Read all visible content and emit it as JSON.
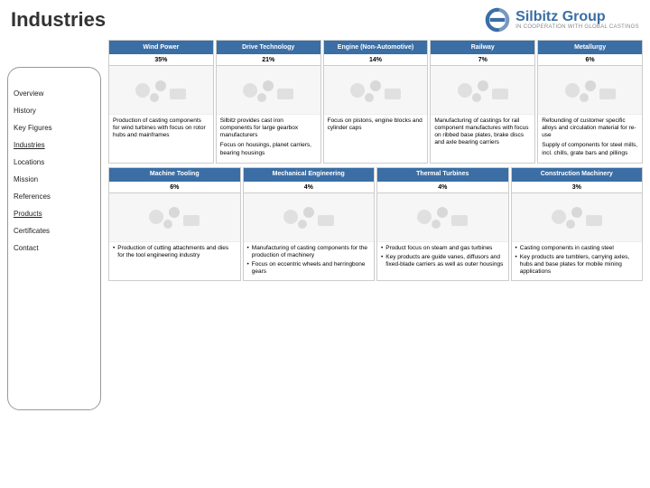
{
  "title": "Industries",
  "logo": {
    "name": "Silbitz Group",
    "sub": "IN COOPERATION WITH GLOBAL CASTINGS"
  },
  "sidebar": {
    "items": [
      {
        "label": "Overview"
      },
      {
        "label": "History"
      },
      {
        "label": "Key Figures"
      },
      {
        "label": "Industries",
        "active": true
      },
      {
        "label": "Locations"
      },
      {
        "label": "Mission"
      },
      {
        "label": "References"
      },
      {
        "label": "Products",
        "active": true
      },
      {
        "label": "Certificates"
      },
      {
        "label": "Contact"
      }
    ]
  },
  "row1": [
    {
      "title": "Wind Power",
      "pct": "35%",
      "desc": [
        "Production of casting components for wind turbines with focus on rotor hubs and mainframes"
      ]
    },
    {
      "title": "Drive Technology",
      "pct": "21%",
      "desc": [
        "Silbitz provides cast iron components for large gearbox manufacturers",
        "Focus on housings, planet carriers, bearing housings"
      ]
    },
    {
      "title": "Engine (Non-Automotive)",
      "pct": "14%",
      "desc": [
        "Focus on pistons, engine blocks and cylinder caps"
      ]
    },
    {
      "title": "Railway",
      "pct": "7%",
      "desc": [
        "Manufacturing of castings for rail component manufactures with focus on ribbed base plates, brake discs and axle bearing carriers"
      ]
    },
    {
      "title": "Metallurgy",
      "pct": "6%",
      "desc": [
        "Refounding of customer specific alloys and circulation material for re-use",
        "Supply of components for steel mills, incl. chills, grate bars and pillings"
      ]
    }
  ],
  "row2": [
    {
      "title": "Machine Tooling",
      "pct": "6%",
      "bullets": [
        "Production of cutting attachments and dies for the tool engineering industry"
      ]
    },
    {
      "title": "Mechanical Engineering",
      "pct": "4%",
      "bullets": [
        "Manufacturing of casting components for the production of machinery",
        "Focus on eccentric wheels and herringbone gears"
      ]
    },
    {
      "title": "Thermal Turbines",
      "pct": "4%",
      "bullets": [
        "Product focus on steam and gas turbines",
        "Key products are guide vanes, diffusors and fixed-blade carriers as well as outer housings"
      ]
    },
    {
      "title": "Construction Machinery",
      "pct": "3%",
      "bullets": [
        "Casting components in casting steel",
        "Key products are tumblers, carrying axles, hubs and base plates for mobile mining applications"
      ]
    }
  ],
  "colors": {
    "brand": "#3a6ea5"
  }
}
